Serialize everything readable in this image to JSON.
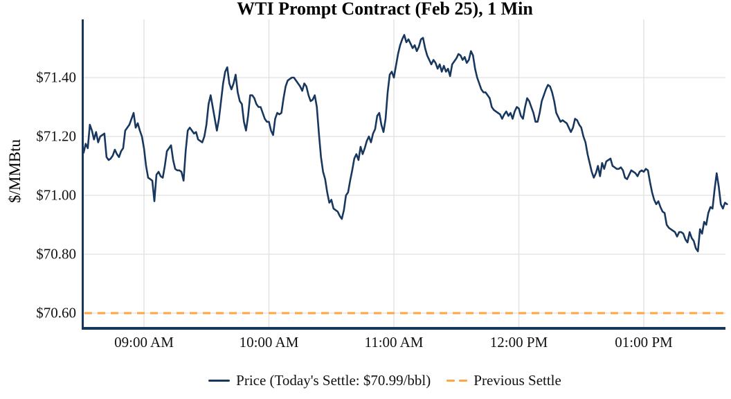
{
  "title": "WTI Prompt Contract (Feb 25), 1 Min",
  "y_axis": {
    "label": "$/MMBtu"
  },
  "legend": {
    "price_label": "Price (Today's Settle: $70.99/bbl)",
    "previous_settle_label": "Previous Settle"
  },
  "colors": {
    "price_line": "#17375e",
    "previous_settle": "#ffa640",
    "grid": "#e0e0e0",
    "axis_spine": "#17375e",
    "text": "#111111",
    "background": "#ffffff"
  },
  "chart_data": {
    "type": "line",
    "title": "WTI Prompt Contract (Feb 25), 1 Min",
    "xlabel": "",
    "ylabel": "$/MMBtu",
    "grid": "on",
    "legend_position": "bottom-center",
    "ylim": [
      70.55,
      71.6
    ],
    "y_ticks": [
      {
        "label": "$71.40",
        "value": 71.4
      },
      {
        "label": "$71.20",
        "value": 71.2
      },
      {
        "label": "$71.00",
        "value": 71.0
      },
      {
        "label": "$70.80",
        "value": 70.8
      },
      {
        "label": "$70.60",
        "value": 70.6
      }
    ],
    "x_ticks": [
      {
        "label": "09:00 AM",
        "minute": 60
      },
      {
        "label": "10:00 AM",
        "minute": 120
      },
      {
        "label": "11:00 AM",
        "minute": 180
      },
      {
        "label": "12:00 PM",
        "minute": 240
      },
      {
        "label": "01:00 PM",
        "minute": 300
      }
    ],
    "x_unit": "minutes_after_08:00_AM",
    "series": [
      {
        "name": "Price (Today's Settle: $70.99/bbl)",
        "style": "solid",
        "color": "#17375e",
        "t0_minute": 31,
        "interval_minutes": 1,
        "prices": [
          71.145,
          71.175,
          71.16,
          71.24,
          71.22,
          71.19,
          71.215,
          71.18,
          71.2,
          71.205,
          71.21,
          71.13,
          71.12,
          71.125,
          71.135,
          71.155,
          71.14,
          71.13,
          71.15,
          71.16,
          71.22,
          71.23,
          71.24,
          71.26,
          71.28,
          71.23,
          71.245,
          71.22,
          71.2,
          71.16,
          71.1,
          71.06,
          71.055,
          71.05,
          70.98,
          71.07,
          71.08,
          71.065,
          71.06,
          71.1,
          71.15,
          71.16,
          71.17,
          71.12,
          71.09,
          71.085,
          71.085,
          71.08,
          71.05,
          71.15,
          71.22,
          71.23,
          71.22,
          71.21,
          71.215,
          71.19,
          71.185,
          71.18,
          71.2,
          71.24,
          71.31,
          71.34,
          71.3,
          71.26,
          71.22,
          71.26,
          71.32,
          71.38,
          71.42,
          71.435,
          71.38,
          71.36,
          71.38,
          71.41,
          71.35,
          71.32,
          71.31,
          71.25,
          71.22,
          71.27,
          71.34,
          71.34,
          71.33,
          71.31,
          71.3,
          71.3,
          71.28,
          71.26,
          71.25,
          71.25,
          71.22,
          71.205,
          71.26,
          71.28,
          71.275,
          71.28,
          71.33,
          71.37,
          71.39,
          71.395,
          71.4,
          71.4,
          71.39,
          71.38,
          71.37,
          71.355,
          71.38,
          71.37,
          71.34,
          71.32,
          71.325,
          71.34,
          71.3,
          71.21,
          71.13,
          71.08,
          71.055,
          71.01,
          70.975,
          70.985,
          70.955,
          70.95,
          70.945,
          70.93,
          70.92,
          70.95,
          71.0,
          71.01,
          71.05,
          71.085,
          71.125,
          71.14,
          71.12,
          71.165,
          71.14,
          71.16,
          71.185,
          71.2,
          71.18,
          71.21,
          71.225,
          71.27,
          71.28,
          71.24,
          71.215,
          71.26,
          71.35,
          71.41,
          71.42,
          71.4,
          71.44,
          71.48,
          71.51,
          71.53,
          71.545,
          71.52,
          71.53,
          71.515,
          71.5,
          71.51,
          71.49,
          71.505,
          71.53,
          71.535,
          71.5,
          71.475,
          71.46,
          71.445,
          71.46,
          71.45,
          71.43,
          71.445,
          71.42,
          71.44,
          71.42,
          71.43,
          71.405,
          71.445,
          71.455,
          71.465,
          71.48,
          71.475,
          71.46,
          71.47,
          71.45,
          71.46,
          71.49,
          71.475,
          71.43,
          71.4,
          71.38,
          71.36,
          71.35,
          71.35,
          71.34,
          71.33,
          71.3,
          71.29,
          71.285,
          71.28,
          71.275,
          71.26,
          71.275,
          71.285,
          71.27,
          71.28,
          71.26,
          71.285,
          71.3,
          71.295,
          71.27,
          71.26,
          71.3,
          71.33,
          71.32,
          71.3,
          71.28,
          71.25,
          71.25,
          71.28,
          71.32,
          71.34,
          71.36,
          71.375,
          71.37,
          71.35,
          71.32,
          71.28,
          71.265,
          71.25,
          71.255,
          71.25,
          71.245,
          71.23,
          71.215,
          71.23,
          71.26,
          71.255,
          71.24,
          71.23,
          71.2,
          71.18,
          71.14,
          71.11,
          71.08,
          71.06,
          71.075,
          71.1,
          71.065,
          71.11,
          71.09,
          71.115,
          71.12,
          71.125,
          71.1,
          71.095,
          71.09,
          71.09,
          71.095,
          71.085,
          71.06,
          71.055,
          71.07,
          71.085,
          71.08,
          71.075,
          71.065,
          71.08,
          71.085,
          71.08,
          71.09,
          71.085,
          71.045,
          71.01,
          70.985,
          70.97,
          70.98,
          70.96,
          70.945,
          70.94,
          70.9,
          70.89,
          70.885,
          70.88,
          70.875,
          70.86,
          70.875,
          70.875,
          70.87,
          70.85,
          70.84,
          70.875,
          70.855,
          70.845,
          70.82,
          70.81,
          70.885,
          70.87,
          70.91,
          70.9,
          70.94,
          70.96,
          70.955,
          71.02,
          71.075,
          71.03,
          70.97,
          70.955,
          70.975,
          70.97
        ]
      },
      {
        "name": "Previous Settle",
        "style": "dashed",
        "color": "#ffa640",
        "hline_value": 70.6
      }
    ]
  }
}
